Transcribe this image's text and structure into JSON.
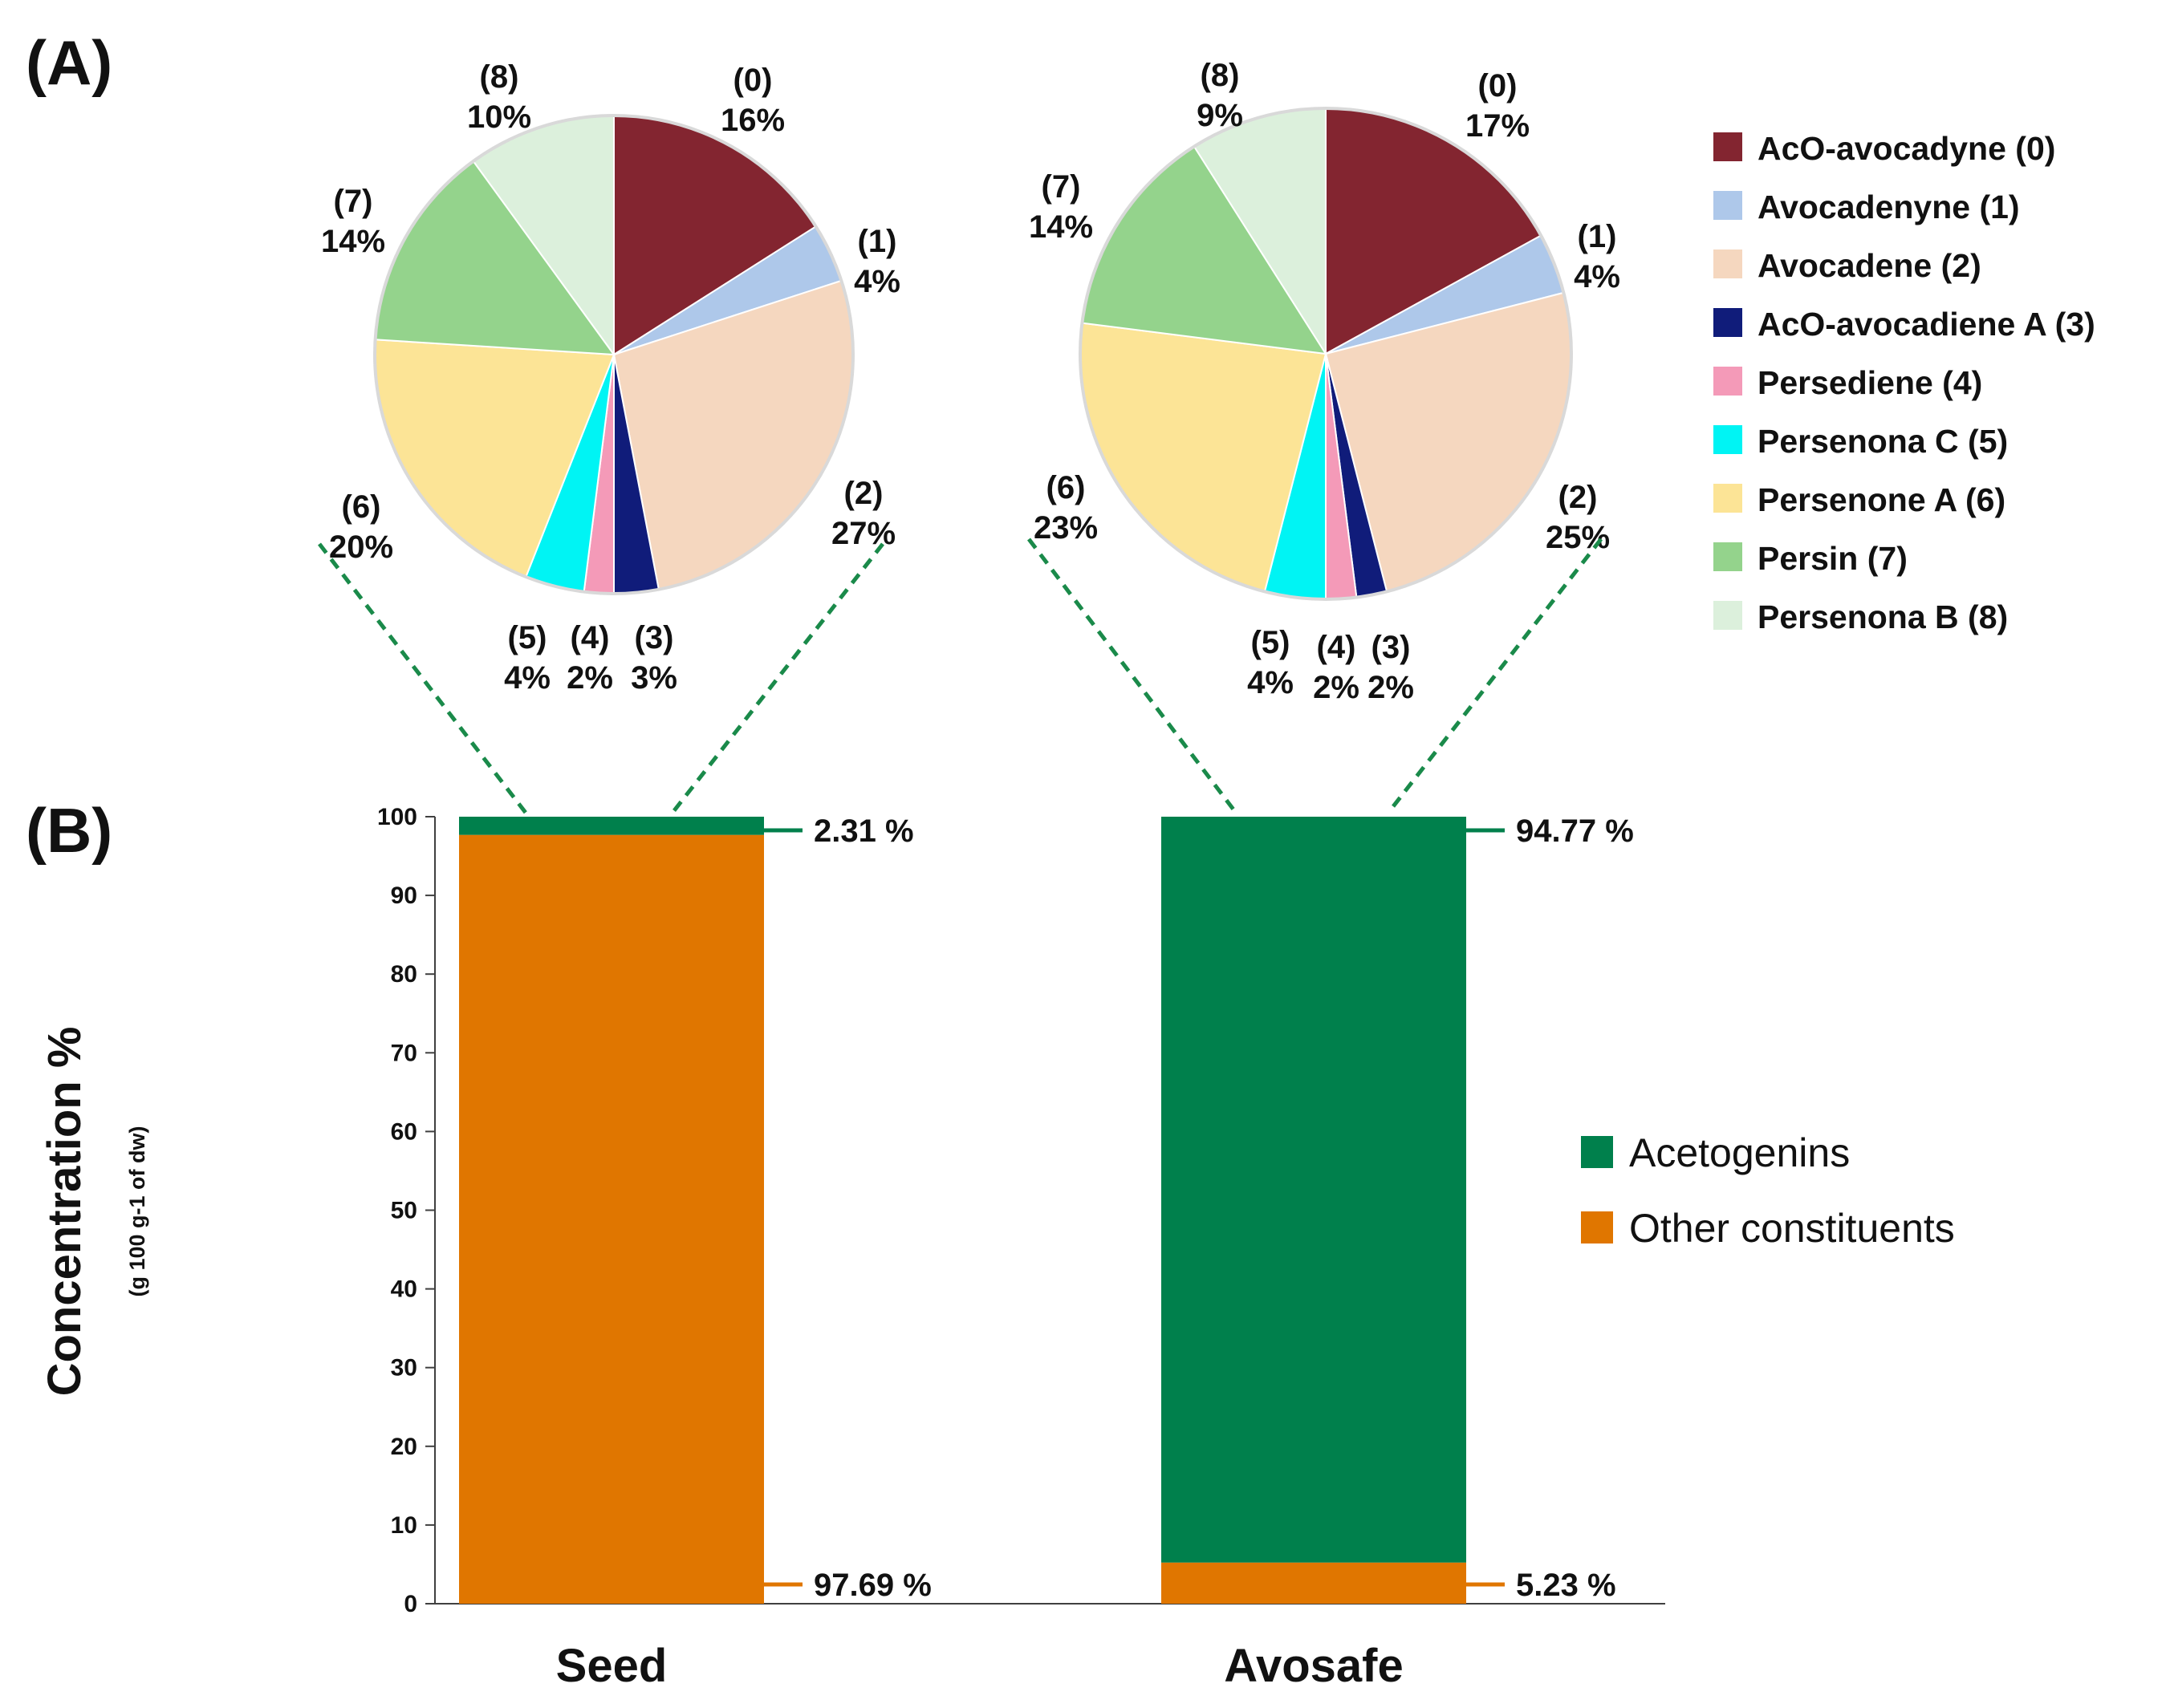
{
  "chart_data": [
    {
      "id": "pie-seed",
      "type": "pie",
      "panel": "(A)",
      "slices": [
        {
          "index": 0,
          "line1": "(0)",
          "line2": "16%",
          "value": 16
        },
        {
          "index": 1,
          "line1": "(1)",
          "line2": "4%",
          "value": 4
        },
        {
          "index": 2,
          "line1": "(2)",
          "line2": "27%",
          "value": 27
        },
        {
          "index": 3,
          "line1": "(3)",
          "line2": "3%",
          "value": 3
        },
        {
          "index": 4,
          "line1": "(4)",
          "line2": "2%",
          "value": 2
        },
        {
          "index": 5,
          "line1": "(5)",
          "line2": "4%",
          "value": 4
        },
        {
          "index": 6,
          "line1": "(6)",
          "line2": "20%",
          "value": 20
        },
        {
          "index": 7,
          "line1": "(7)",
          "line2": "14%",
          "value": 14
        },
        {
          "index": 8,
          "line1": "(8)",
          "line2": "10%",
          "value": 10
        }
      ]
    },
    {
      "id": "pie-avosafe",
      "type": "pie",
      "slices": [
        {
          "index": 0,
          "line1": "(0)",
          "line2": "17%",
          "value": 17
        },
        {
          "index": 1,
          "line1": "(1)",
          "line2": "4%",
          "value": 4
        },
        {
          "index": 2,
          "line1": "(2)",
          "line2": "25%",
          "value": 25
        },
        {
          "index": 3,
          "line1": "(3)",
          "line2": "2%",
          "value": 2
        },
        {
          "index": 4,
          "line1": "(4)",
          "line2": "2%",
          "value": 2
        },
        {
          "index": 5,
          "line1": "(5)",
          "line2": "4%",
          "value": 4
        },
        {
          "index": 6,
          "line1": "(6)",
          "line2": "23%",
          "value": 23
        },
        {
          "index": 7,
          "line1": "(7)",
          "line2": "14%",
          "value": 14
        },
        {
          "index": 8,
          "line1": "(8)",
          "line2": "9%",
          "value": 9
        }
      ]
    },
    {
      "id": "stacked-bar",
      "type": "bar",
      "stacked": true,
      "panel": "(B)",
      "categories": [
        "Seed",
        "Avosafe"
      ],
      "series": [
        {
          "name": "Other constituents",
          "values": [
            97.69,
            5.23
          ],
          "color": "#E07600",
          "labels": [
            "97.69 %",
            "5.23 %"
          ]
        },
        {
          "name": "Acetogenins",
          "values": [
            2.31,
            94.77
          ],
          "color": "#00804C",
          "labels": [
            "2.31 %",
            "94.77 %"
          ]
        }
      ],
      "ylabel": "Concentration %",
      "ylabel_sub": "(g 100 g-1 of dw)",
      "ylim": [
        0,
        100
      ],
      "yticks": [
        "0",
        "10",
        "20",
        "30",
        "40",
        "50",
        "60",
        "70",
        "80",
        "90",
        "100"
      ],
      "legend": [
        "Acetogenins",
        "Other constituents"
      ]
    }
  ],
  "pie_legend": [
    {
      "label": "AcO-avocadyne (0)",
      "color": "#832530"
    },
    {
      "label": "Avocadenyne (1)",
      "color": "#AEC8EA"
    },
    {
      "label": "Avocadene (2)",
      "color": "#F5D7BF"
    },
    {
      "label": "AcO-avocadiene A (3)",
      "color": "#101C7A"
    },
    {
      "label": "Persediene (4)",
      "color": "#F49AB8"
    },
    {
      "label": "Persenona C (5)",
      "color": "#00F4F4"
    },
    {
      "label": "Persenone A (6)",
      "color": "#FCE496"
    },
    {
      "label": "Persin (7)",
      "color": "#94D38C"
    },
    {
      "label": "Persenona B (8)",
      "color": "#DCF0DC"
    }
  ],
  "connector_color": "#1A8A4A"
}
